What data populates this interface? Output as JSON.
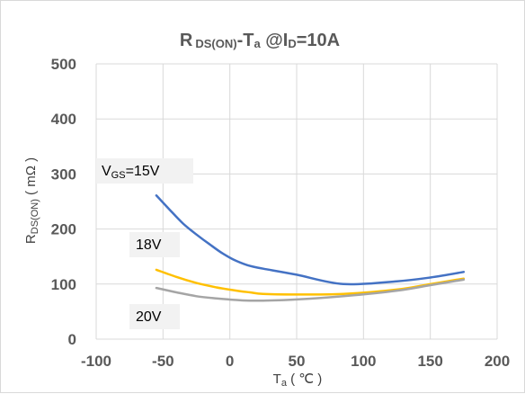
{
  "chart_data": {
    "type": "line",
    "title": {
      "main": "R",
      "sub1": "DS(ON)",
      "mid": "-T",
      "sub2": "a",
      "tail1": " @I",
      "sub3": "D",
      "tail2": "=10A"
    },
    "xlabel": {
      "main": "T",
      "sub": "a",
      "tail": " ( ℃ )"
    },
    "ylabel": {
      "main": "R",
      "sub": "DS(ON)",
      "tail": " ( mΩ )"
    },
    "xlim": [
      -100,
      200
    ],
    "ylim": [
      0,
      500
    ],
    "x_ticks": [
      -100,
      -50,
      0,
      50,
      100,
      150,
      200
    ],
    "y_ticks": [
      0,
      100,
      200,
      300,
      400,
      500
    ],
    "grid": true,
    "series": [
      {
        "name": "VGS=15V",
        "color": "#4472c4",
        "x": [
          -55,
          -45,
          -35,
          -25,
          -15,
          -5,
          5,
          15,
          25,
          50,
          85,
          125,
          150,
          175
        ],
        "y": [
          261,
          235,
          210,
          190,
          172,
          155,
          142,
          133,
          128,
          117,
          100,
          105,
          112,
          122
        ]
      },
      {
        "name": "18V",
        "color": "#ffc000",
        "x": [
          -55,
          -40,
          -25,
          -10,
          5,
          15,
          25,
          50,
          85,
          125,
          150,
          175
        ],
        "y": [
          126,
          113,
          102,
          94,
          88,
          85,
          82,
          81,
          82,
          90,
          100,
          110
        ]
      },
      {
        "name": "20V",
        "color": "#a5a5a5",
        "x": [
          -55,
          -40,
          -25,
          -10,
          5,
          15,
          25,
          50,
          85,
          125,
          150,
          175
        ],
        "y": [
          93,
          85,
          78,
          74,
          71,
          70,
          70,
          72,
          78,
          88,
          98,
          108
        ]
      }
    ],
    "annotations": {
      "vgs15": {
        "main": "V",
        "sub": "GS",
        "tail": "=15V"
      },
      "v18": "18V",
      "v20": "20V"
    }
  }
}
